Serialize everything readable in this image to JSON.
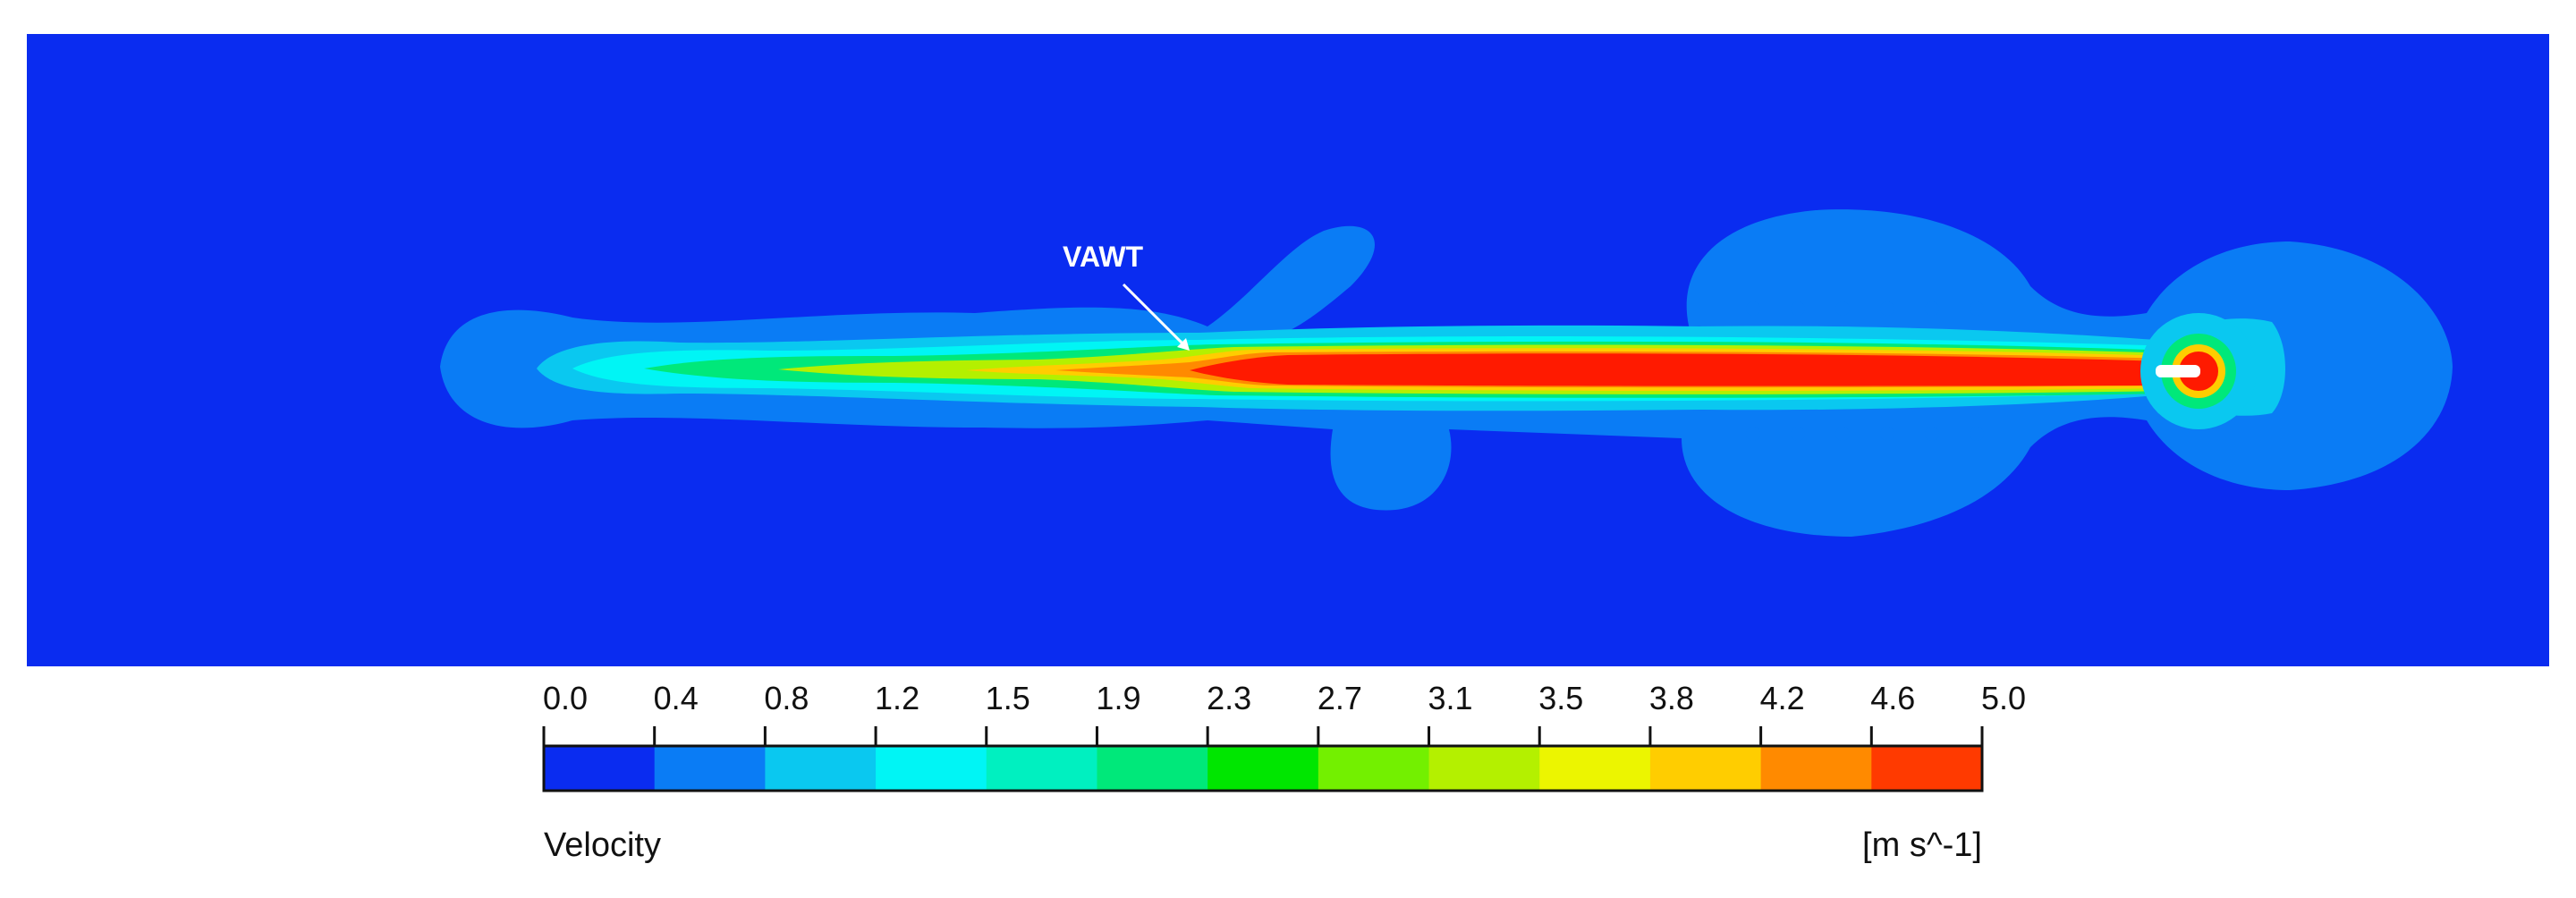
{
  "annotation": {
    "label": "VAWT"
  },
  "legend": {
    "title": "Velocity",
    "units": "[m s^-1]",
    "ticks": [
      "0.0",
      "0.4",
      "0.8",
      "1.2",
      "1.5",
      "1.9",
      "2.3",
      "2.7",
      "3.1",
      "3.5",
      "3.8",
      "4.2",
      "4.6",
      "5.0"
    ],
    "colors": [
      "#0a2cf0",
      "#0a7cf5",
      "#0ac8f0",
      "#00f5f5",
      "#00f0c0",
      "#00e87a",
      "#00e600",
      "#73f000",
      "#b4f000",
      "#ecf500",
      "#ffcd00",
      "#ff8a00",
      "#ff3a00"
    ]
  },
  "field_colors": {
    "background": "#0a2cf0",
    "level_1": "#0a7cf5",
    "level_2": "#0ac8f0",
    "level_3": "#00f5f5",
    "level_4": "#00e87a",
    "level_5": "#b4f000",
    "level_6": "#ffcd00",
    "level_7": "#ff8a00",
    "level_8": "#ff1a00",
    "device": "#ffffff"
  }
}
